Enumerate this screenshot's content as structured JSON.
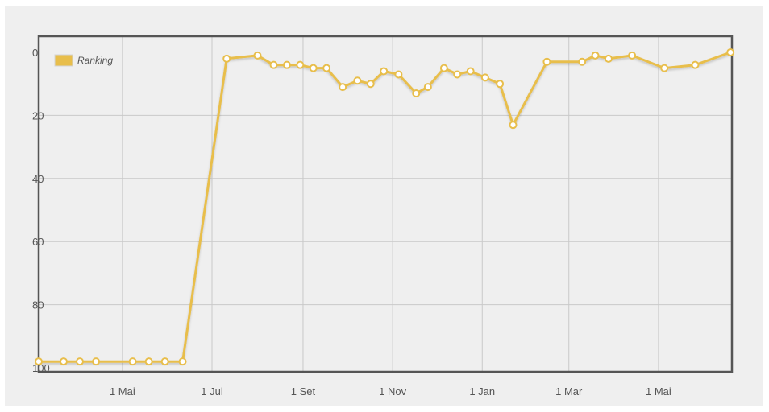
{
  "chart_data": {
    "type": "line",
    "title": "",
    "xlabel": "",
    "ylabel": "",
    "y_inverted": true,
    "ylim": [
      0,
      100
    ],
    "yticks": [
      0,
      20,
      40,
      60,
      80,
      100
    ],
    "xticks": [
      {
        "date": "2013-05-01",
        "label": "1 Mai"
      },
      {
        "date": "2013-07-01",
        "label": "1 Jul"
      },
      {
        "date": "2013-09-01",
        "label": "1 Set"
      },
      {
        "date": "2013-11-01",
        "label": "1 Nov"
      },
      {
        "date": "2014-01-01",
        "label": "1 Jan"
      },
      {
        "date": "2014-03-01",
        "label": "1 Mar"
      },
      {
        "date": "2014-05-01",
        "label": "1 Mai"
      }
    ],
    "xlim": [
      "2013-03-05",
      "2014-06-20"
    ],
    "grid": true,
    "legend": {
      "position": "top-left",
      "entries": [
        "Ranking"
      ]
    },
    "series": [
      {
        "name": "Ranking",
        "color": "#e8be4b",
        "points": [
          {
            "x": "2013-03-05",
            "y": 98
          },
          {
            "x": "2013-03-22",
            "y": 98
          },
          {
            "x": "2013-04-02",
            "y": 98
          },
          {
            "x": "2013-04-13",
            "y": 98
          },
          {
            "x": "2013-05-08",
            "y": 98
          },
          {
            "x": "2013-05-19",
            "y": 98
          },
          {
            "x": "2013-05-30",
            "y": 98
          },
          {
            "x": "2013-06-11",
            "y": 98
          },
          {
            "x": "2013-07-11",
            "y": 2
          },
          {
            "x": "2013-08-01",
            "y": 1
          },
          {
            "x": "2013-08-12",
            "y": 4
          },
          {
            "x": "2013-08-21",
            "y": 4
          },
          {
            "x": "2013-08-30",
            "y": 4
          },
          {
            "x": "2013-09-08",
            "y": 5
          },
          {
            "x": "2013-09-17",
            "y": 5
          },
          {
            "x": "2013-09-28",
            "y": 11
          },
          {
            "x": "2013-10-08",
            "y": 9
          },
          {
            "x": "2013-10-17",
            "y": 10
          },
          {
            "x": "2013-10-26",
            "y": 6
          },
          {
            "x": "2013-11-05",
            "y": 7
          },
          {
            "x": "2013-11-17",
            "y": 13
          },
          {
            "x": "2013-11-25",
            "y": 11
          },
          {
            "x": "2013-12-06",
            "y": 5
          },
          {
            "x": "2013-12-15",
            "y": 7
          },
          {
            "x": "2013-12-24",
            "y": 6
          },
          {
            "x": "2014-01-03",
            "y": 8
          },
          {
            "x": "2014-01-13",
            "y": 10
          },
          {
            "x": "2014-01-22",
            "y": 23
          },
          {
            "x": "2014-02-14",
            "y": 3
          },
          {
            "x": "2014-03-10",
            "y": 3
          },
          {
            "x": "2014-03-19",
            "y": 1
          },
          {
            "x": "2014-03-28",
            "y": 2
          },
          {
            "x": "2014-04-13",
            "y": 1
          },
          {
            "x": "2014-05-05",
            "y": 5
          },
          {
            "x": "2014-05-26",
            "y": 4
          },
          {
            "x": "2014-06-19",
            "y": 0
          }
        ]
      }
    ]
  }
}
